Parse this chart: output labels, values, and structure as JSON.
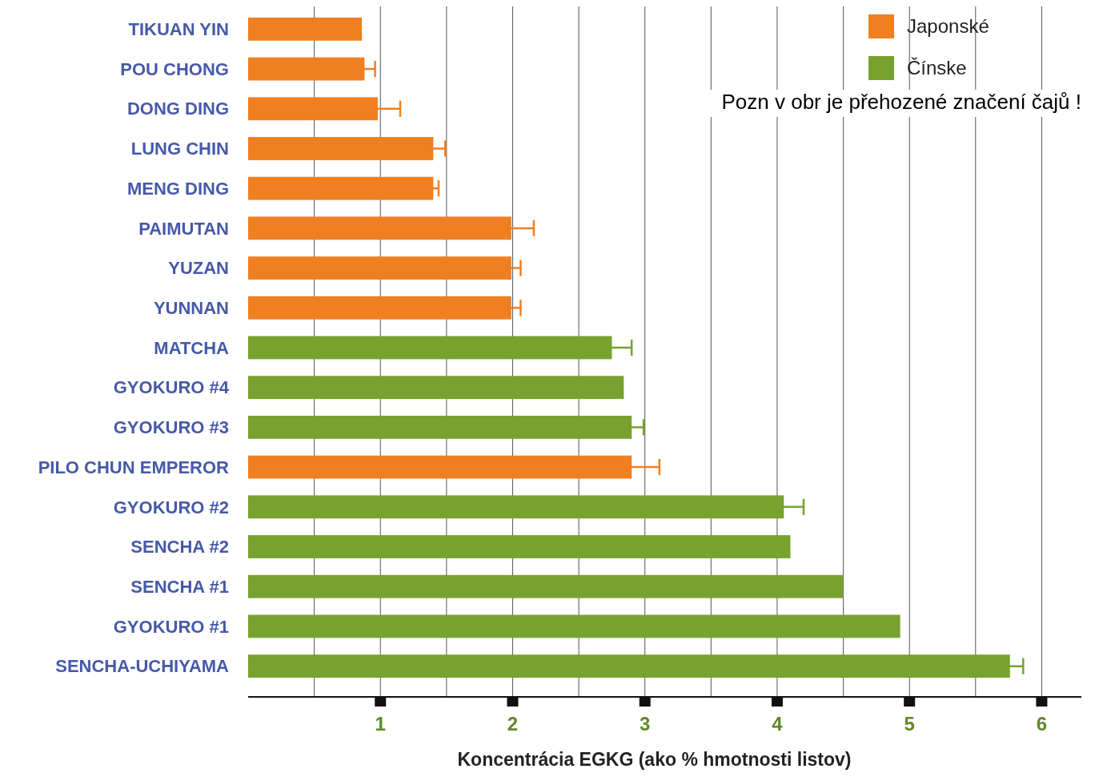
{
  "chart_data": {
    "type": "bar",
    "orientation": "horizontal",
    "xlabel": "Koncentrácia EGKG (ako % hmotnosti listov)",
    "categories": [
      "TIKUAN YIN",
      "POU CHONG",
      "DONG DING",
      "LUNG CHIN",
      "MENG DING",
      "PAIMUTAN",
      "YUZAN",
      "YUNNAN",
      "MATCHA",
      "GYOKURO #4",
      "GYOKURO #3",
      "PILO CHUN EMPEROR",
      "GYOKURO #2",
      "SENCHA #2",
      "SENCHA #1",
      "GYOKURO #1",
      "SENCHA-UCHIYAMA"
    ],
    "series": [
      {
        "name": "Japonské",
        "color": "#f07f22",
        "values": [
          0.86,
          0.88,
          0.98,
          1.4,
          1.4,
          1.99,
          1.99,
          1.99,
          null,
          null,
          null,
          2.9,
          null,
          null,
          null,
          null,
          null
        ],
        "errors": [
          null,
          0.08,
          0.17,
          0.09,
          0.04,
          0.17,
          0.07,
          0.07,
          null,
          null,
          null,
          0.21,
          null,
          null,
          null,
          null,
          null
        ]
      },
      {
        "name": "Čínske",
        "color": "#77a22f",
        "values": [
          null,
          null,
          null,
          null,
          null,
          null,
          null,
          null,
          2.75,
          2.84,
          2.9,
          null,
          4.05,
          4.1,
          4.5,
          4.93,
          5.76
        ],
        "errors": [
          null,
          null,
          null,
          null,
          null,
          null,
          null,
          null,
          0.15,
          null,
          0.09,
          null,
          0.15,
          null,
          null,
          null,
          0.1
        ]
      }
    ],
    "xlim": [
      0,
      6.3
    ],
    "xticks": [
      1,
      2,
      3,
      4,
      5,
      6
    ],
    "grid": "x",
    "legend": "top right",
    "annotations": [
      "Pozn v obr  je přehozené značení čajů !"
    ]
  }
}
